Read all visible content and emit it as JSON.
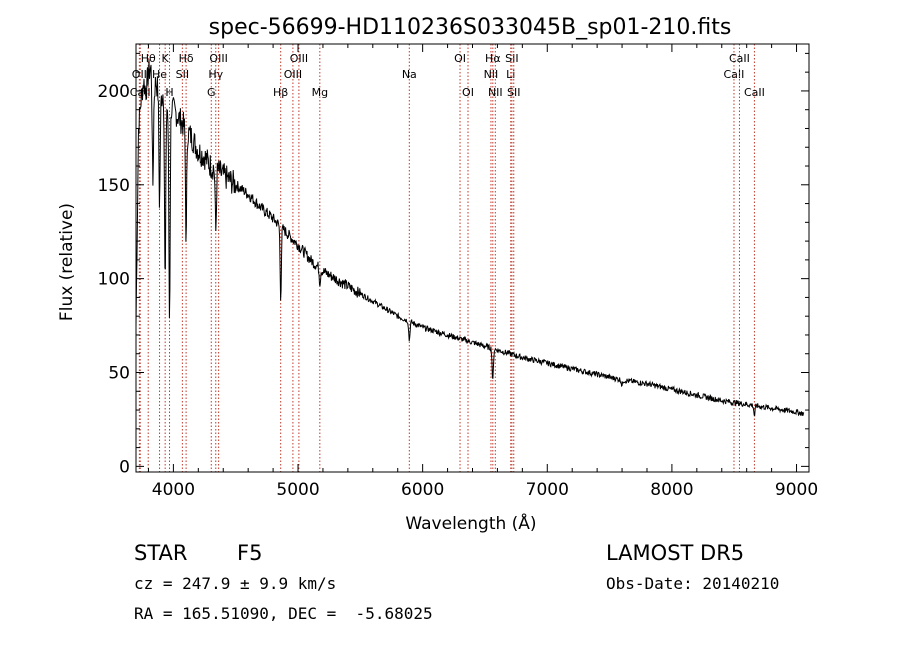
{
  "chart_data": {
    "type": "line",
    "title": "spec-56699-HD110236S033045B_sp01-210.fits",
    "xlabel": "Wavelength (Å)",
    "ylabel": "Flux (relative)",
    "xlim": [
      3700,
      9100
    ],
    "ylim": [
      -3,
      225
    ],
    "x_ticks": [
      4000,
      5000,
      6000,
      7000,
      8000,
      9000
    ],
    "x_tick_labels": [
      "4000",
      "5000",
      "6000",
      "7000",
      "8000",
      "9000"
    ],
    "y_ticks": [
      0,
      50,
      100,
      150,
      200
    ],
    "y_tick_labels": [
      "0",
      "50",
      "100",
      "150",
      "200"
    ],
    "grid": false,
    "series": [
      {
        "x": [
          3700,
          3720,
          3740,
          3760,
          3780,
          3800,
          3820,
          3840,
          3860,
          3880,
          3900,
          3920,
          3940,
          3960,
          3980,
          4000,
          4050,
          4100,
          4150,
          4200,
          4250,
          4300,
          4350,
          4400,
          4500,
          4600,
          4700,
          4800,
          4900,
          5000,
          5100,
          5200,
          5300,
          5400,
          5500,
          5600,
          5700,
          5800,
          5900,
          6000,
          6200,
          6400,
          6600,
          6800,
          7000,
          7200,
          7400,
          7600,
          7800,
          8000,
          8200,
          8400,
          8600,
          8800,
          9000,
          9060
        ],
        "y": [
          75,
          180,
          195,
          205,
          200,
          210,
          212,
          198,
          205,
          200,
          195,
          200,
          198,
          185,
          192,
          190,
          185,
          180,
          175,
          168,
          165,
          160,
          158,
          155,
          150,
          145,
          138,
          132,
          125,
          118,
          110,
          104,
          100,
          96,
          92,
          88,
          84,
          80,
          77,
          74,
          70,
          66,
          62,
          58,
          55,
          52,
          49,
          46,
          44,
          41,
          38,
          35,
          33,
          31,
          29,
          28
        ],
        "dips": [
          {
            "x": 3835,
            "y": 150
          },
          {
            "x": 3889,
            "y": 140
          },
          {
            "x": 3934,
            "y": 95
          },
          {
            "x": 3969,
            "y": 78
          },
          {
            "x": 4102,
            "y": 120
          },
          {
            "x": 4340,
            "y": 125
          },
          {
            "x": 4861,
            "y": 90
          },
          {
            "x": 5175,
            "y": 98
          },
          {
            "x": 5893,
            "y": 67
          },
          {
            "x": 6563,
            "y": 45
          },
          {
            "x": 7600,
            "y": 43
          },
          {
            "x": 8662,
            "y": 27
          }
        ]
      }
    ],
    "lines": [
      {
        "x": 3727,
        "label": "OII",
        "row": 2
      },
      {
        "x": 3734,
        "label": "CaII",
        "row": 3
      },
      {
        "x": 3798,
        "label": "Hθ",
        "row": 1
      },
      {
        "x": 3889,
        "label": "He",
        "row": 2
      },
      {
        "x": 3934,
        "label": "K",
        "row": 1
      },
      {
        "x": 3969,
        "label": "H",
        "row": 3
      },
      {
        "x": 4072,
        "label": "SII",
        "row": 2
      },
      {
        "x": 4102,
        "label": "Hδ",
        "row": 1
      },
      {
        "x": 4304,
        "label": "G",
        "row": 3
      },
      {
        "x": 4340,
        "label": "Hγ",
        "row": 2
      },
      {
        "x": 4363,
        "label": "OIII",
        "row": 1
      },
      {
        "x": 4861,
        "label": "Hβ",
        "row": 3
      },
      {
        "x": 4959,
        "label": "OIII",
        "row": 2
      },
      {
        "x": 5007,
        "label": "OIII",
        "row": 1
      },
      {
        "x": 5175,
        "label": "Mg",
        "row": 3
      },
      {
        "x": 5893,
        "label": "Na",
        "row": 2
      },
      {
        "x": 6300,
        "label": "OI",
        "row": 1
      },
      {
        "x": 6364,
        "label": "OI",
        "row": 3
      },
      {
        "x": 6548,
        "label": "NII",
        "row": 2
      },
      {
        "x": 6563,
        "label": "Hα",
        "row": 1
      },
      {
        "x": 6583,
        "label": "NII",
        "row": 3
      },
      {
        "x": 6707,
        "label": "Li",
        "row": 2
      },
      {
        "x": 6716,
        "label": "SII",
        "row": 1
      },
      {
        "x": 6731,
        "label": "SII",
        "row": 3
      },
      {
        "x": 8498,
        "label": "CaII",
        "row": 2
      },
      {
        "x": 8542,
        "label": "CaII",
        "row": 1
      },
      {
        "x": 8662,
        "label": "CaII",
        "row": 3
      }
    ]
  },
  "info": {
    "class_label": "STAR",
    "subclass": "F5",
    "survey": "LAMOST DR5",
    "cz": "cz = 247.9 ± 9.9 km/s",
    "obs_date": "Obs-Date: 20140210",
    "coords": "RA = 165.51090, DEC =  -5.68025"
  },
  "colors": {
    "line_marker": "#c0392b",
    "spectrum": "#000000",
    "axes": "#000000"
  }
}
